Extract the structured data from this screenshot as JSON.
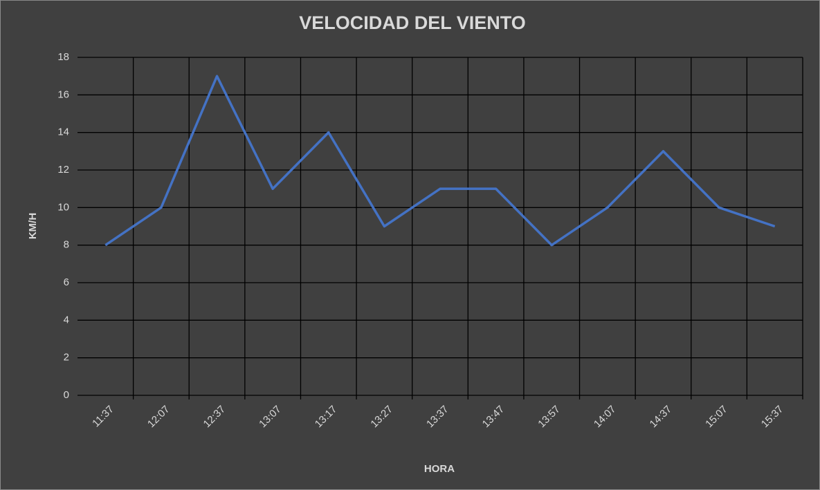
{
  "chart_data": {
    "type": "line",
    "title": "VELOCIDAD DEL VIENTO",
    "x_label": "HORA",
    "y_label": "KM/H",
    "categories": [
      "11:37",
      "12:07",
      "12:37",
      "13:07",
      "13:17",
      "13:27",
      "13:37",
      "13:47",
      "13:57",
      "14:07",
      "14:37",
      "15:07",
      "15:37"
    ],
    "values": [
      8,
      10,
      17,
      11,
      14,
      9,
      11,
      11,
      8,
      10,
      13,
      10,
      9
    ],
    "color": "#4472c4",
    "ylim": [
      0,
      18
    ],
    "yticks": [
      0,
      2,
      4,
      6,
      8,
      10,
      12,
      14,
      16,
      18
    ],
    "grid": true
  }
}
